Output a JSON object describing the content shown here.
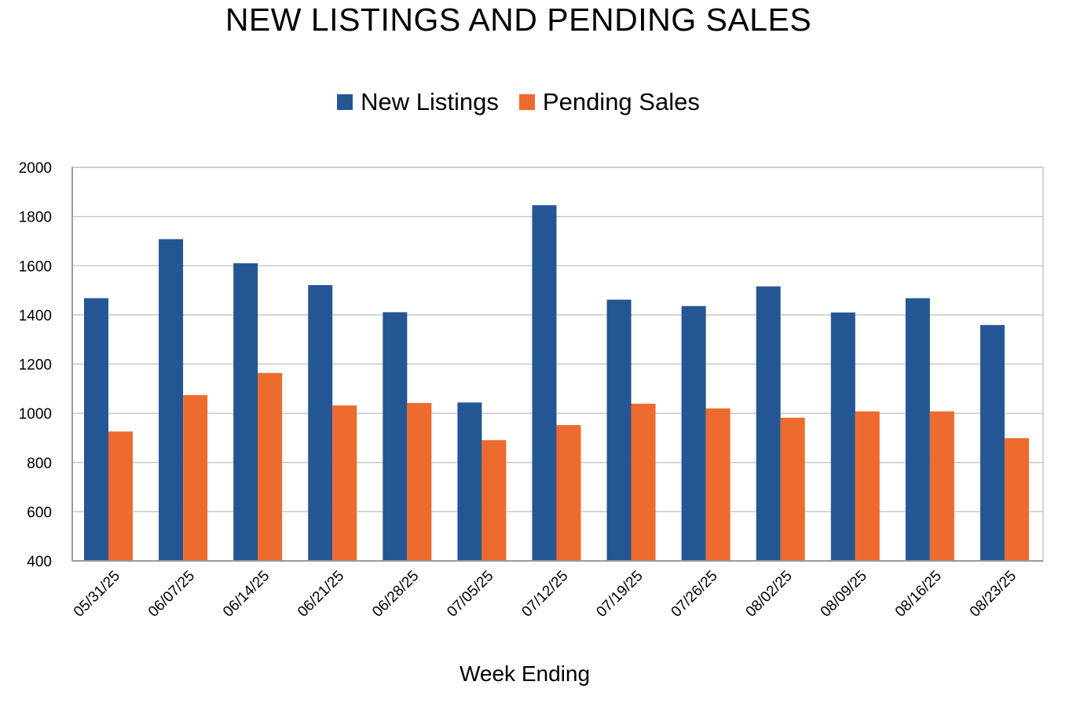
{
  "chart_data": {
    "type": "bar",
    "title": "NEW LISTINGS AND PENDING SALES",
    "xlabel": "Week Ending",
    "ylabel": "",
    "ylim": [
      400,
      2000
    ],
    "yticks": [
      400,
      600,
      800,
      1000,
      1200,
      1400,
      1600,
      1800,
      2000
    ],
    "grid": true,
    "legend_position": "top-center",
    "categories": [
      "05/31/25",
      "06/07/25",
      "06/14/25",
      "06/21/25",
      "06/28/25",
      "07/05/25",
      "07/12/25",
      "07/19/25",
      "07/26/25",
      "08/02/25",
      "08/09/25",
      "08/16/25",
      "08/23/25"
    ],
    "series": [
      {
        "name": "New Listings",
        "color": "#245694",
        "values": [
          1468,
          1708,
          1610,
          1521,
          1411,
          1044,
          1846,
          1462,
          1436,
          1516,
          1410,
          1468,
          1359
        ]
      },
      {
        "name": "Pending Sales",
        "color": "#ED6B2F",
        "values": [
          926,
          1074,
          1164,
          1032,
          1042,
          891,
          952,
          1039,
          1020,
          982,
          1008,
          1008,
          899
        ]
      }
    ]
  }
}
